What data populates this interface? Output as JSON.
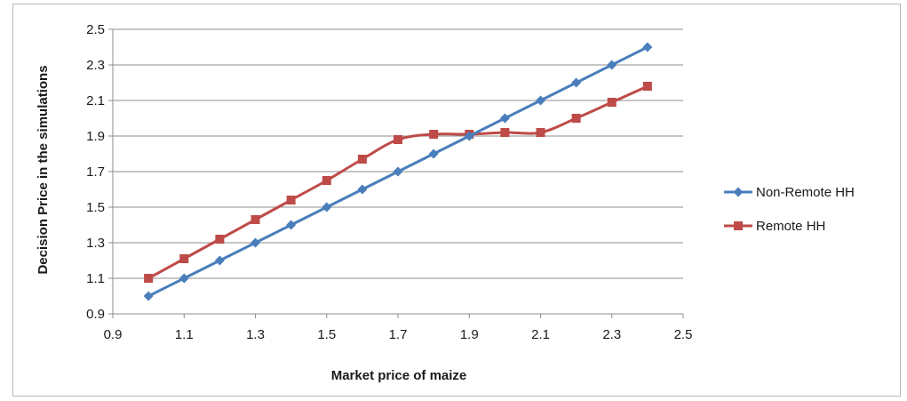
{
  "chart_data": {
    "type": "line",
    "title": "",
    "xlabel": "Market price of maize",
    "ylabel": "Decision Price in the simulations",
    "xlim": [
      0.9,
      2.5
    ],
    "ylim": [
      0.9,
      2.5
    ],
    "xticks": [
      "0.9",
      "1.1",
      "1.3",
      "1.5",
      "1.7",
      "1.9",
      "2.1",
      "2.3",
      "2.5"
    ],
    "yticks": [
      "0.9",
      "1.1",
      "1.3",
      "1.5",
      "1.7",
      "1.9",
      "2.1",
      "2.3",
      "2.5"
    ],
    "grid": "horizontal",
    "legend_position": "right",
    "x": [
      1.0,
      1.1,
      1.2,
      1.3,
      1.4,
      1.5,
      1.6,
      1.7,
      1.8,
      1.9,
      2.0,
      2.1,
      2.2,
      2.3,
      2.4
    ],
    "series": [
      {
        "name": "Non-Remote HH",
        "color": "#4a7ebb",
        "marker": "diamond",
        "values": [
          1.0,
          1.1,
          1.2,
          1.3,
          1.4,
          1.5,
          1.6,
          1.7,
          1.8,
          1.9,
          2.0,
          2.1,
          2.2,
          2.3,
          2.4
        ]
      },
      {
        "name": "Remote HH",
        "color": "#be4b48",
        "marker": "square",
        "values": [
          1.1,
          1.21,
          1.32,
          1.43,
          1.54,
          1.65,
          1.77,
          1.88,
          1.91,
          1.91,
          1.92,
          1.92,
          2.0,
          2.09,
          2.18
        ]
      }
    ]
  }
}
